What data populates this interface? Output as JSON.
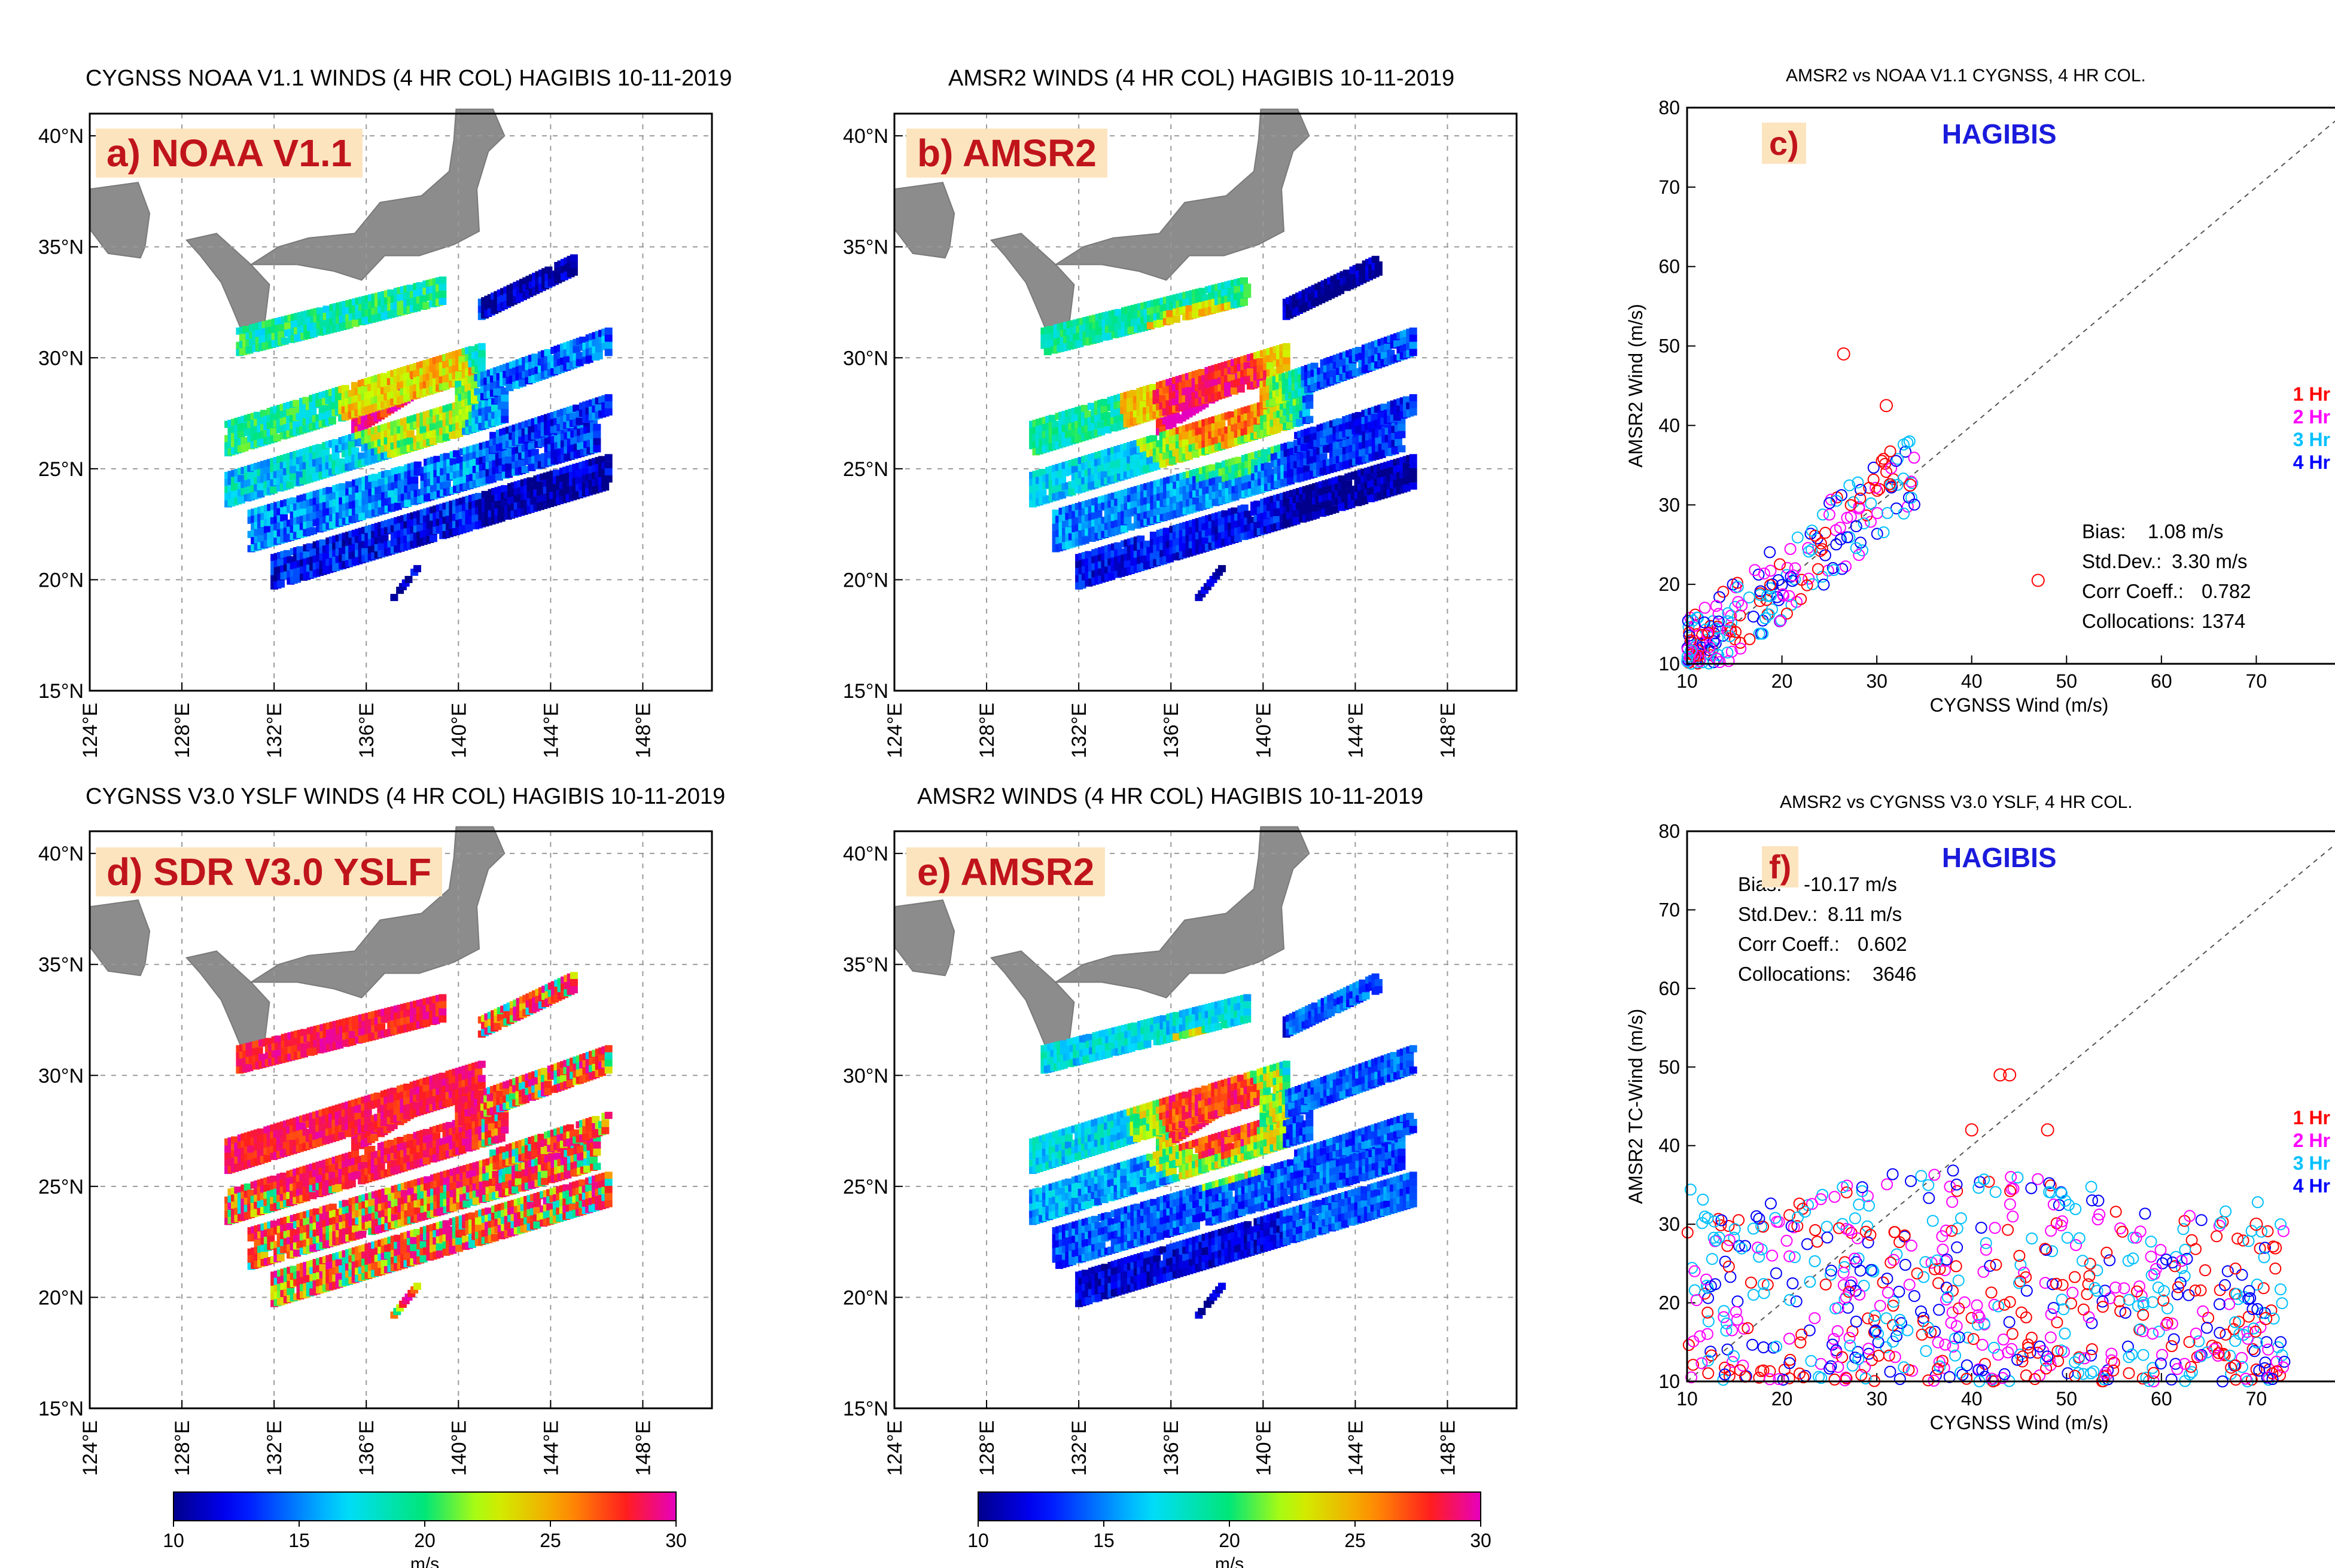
{
  "maps": [
    {
      "id": "a",
      "title": "CYGNSS NOAA V1.1 WINDS (4 HR COL)    HAGIBIS   10-11-2019",
      "label": "a) NOAA V1.1",
      "scheme": "noaa",
      "has_colorbar": false
    },
    {
      "id": "b",
      "title": "AMSR2 WINDS (4 HR COL)    HAGIBIS   10-11-2019",
      "label": "b) AMSR2",
      "scheme": "amsr",
      "has_colorbar": false
    },
    {
      "id": "d",
      "title": "CYGNSS  V3.0 YSLF WINDS (4 HR COL) HAGIBIS   10-11-2019",
      "label": "d) SDR V3.0 YSLF",
      "scheme": "yslf",
      "has_colorbar": true
    },
    {
      "id": "e",
      "title": "AMSR2 WINDS (4 HR COL)    HAGIBIS   10-11-2019",
      "label": "e) AMSR2",
      "scheme": "amsr2",
      "has_colorbar": true
    }
  ],
  "map_axes": {
    "lon_ticks": [
      "124°E",
      "128°E",
      "132°E",
      "136°E",
      "140°E",
      "144°E",
      "148°E"
    ],
    "lat_ticks": [
      "40°N",
      "35°N",
      "30°N",
      "25°N",
      "20°N",
      "15°N"
    ],
    "lon_range": [
      124,
      151
    ],
    "lat_range": [
      15,
      41
    ]
  },
  "colorbar": {
    "ticks": [
      "10",
      "15",
      "20",
      "25",
      "30"
    ],
    "unit": "m/s",
    "range": [
      10,
      30
    ]
  },
  "scatter_c": {
    "title": "AMSR2 vs NOAA V1.1 CYGNSS, 4 HR COL.",
    "label": "c)",
    "storm": "HAGIBIS",
    "xlabel": "CYGNSS Wind (m/s)",
    "ylabel": "AMSR2 Wind (m/s)",
    "ticks": [
      "10",
      "20",
      "30",
      "40",
      "50",
      "60",
      "70",
      "80"
    ],
    "legend": [
      "1 Hr",
      "2 Hr",
      "3 Hr",
      "4 Hr"
    ],
    "stats": [
      {
        "k": "Bias:",
        "v": "1.08 m/s"
      },
      {
        "k": "Std.Dev.:",
        "v": "3.30 m/s"
      },
      {
        "k": "Corr Coeff.:",
        "v": "0.782"
      },
      {
        "k": "Collocations:",
        "v": "1374"
      }
    ]
  },
  "scatter_f": {
    "title": "AMSR2 vs CYGNSS  V3.0 YSLF, 4 HR COL.",
    "label": "f)",
    "storm": "HAGIBIS",
    "xlabel": "CYGNSS Wind (m/s)",
    "ylabel": "AMSR2 TC-Wind (m/s)",
    "ticks": [
      "10",
      "20",
      "30",
      "40",
      "50",
      "60",
      "70",
      "80"
    ],
    "legend": [
      "1 Hr",
      "2 Hr",
      "3 Hr",
      "4 Hr"
    ],
    "stats": [
      {
        "k": "Bias:",
        "v": "-10.17 m/s"
      },
      {
        "k": "Std.Dev.:",
        "v": "8.11 m/s"
      },
      {
        "k": "Corr Coeff.:",
        "v": "0.602"
      },
      {
        "k": "Collocations:",
        "v": "3646"
      }
    ]
  },
  "chart_data": [
    {
      "type": "scatter",
      "title": "AMSR2 vs NOAA V1.1 CYGNSS, 4 HR COL.",
      "xlabel": "CYGNSS Wind (m/s)",
      "ylabel": "AMSR2 Wind (m/s)",
      "xlim": [
        10,
        80
      ],
      "ylim": [
        10,
        80
      ],
      "series": [
        {
          "name": "1 Hr",
          "color": "#ff0000"
        },
        {
          "name": "2 Hr",
          "color": "#ff00ff"
        },
        {
          "name": "3 Hr",
          "color": "#00c0ff"
        },
        {
          "name": "4 Hr",
          "color": "#0000ff"
        }
      ],
      "outliers": [
        [
          26.5,
          49
        ],
        [
          31,
          42.5
        ],
        [
          47,
          20.5
        ],
        [
          33.5,
          32.5
        ]
      ],
      "cluster": {
        "x_mean": 19,
        "y_mean": 20,
        "x_range": [
          10,
          34
        ],
        "y_range": [
          10,
          37
        ]
      },
      "stats": {
        "bias": 1.08,
        "std_dev": 3.3,
        "corr": 0.782,
        "n": 1374
      }
    },
    {
      "type": "scatter",
      "title": "AMSR2 vs CYGNSS  V3.0 YSLF, 4 HR COL.",
      "xlabel": "CYGNSS Wind (m/s)",
      "ylabel": "AMSR2 TC-Wind (m/s)",
      "xlim": [
        10,
        80
      ],
      "ylim": [
        10,
        80
      ],
      "series": [
        {
          "name": "1 Hr",
          "color": "#ff0000"
        },
        {
          "name": "2 Hr",
          "color": "#ff00ff"
        },
        {
          "name": "3 Hr",
          "color": "#00c0ff"
        },
        {
          "name": "4 Hr",
          "color": "#0000ff"
        }
      ],
      "outliers": [
        [
          43,
          49
        ],
        [
          44,
          49
        ],
        [
          40,
          42
        ],
        [
          48,
          42
        ],
        [
          70,
          30
        ],
        [
          71,
          18
        ],
        [
          72,
          27
        ]
      ],
      "cluster": {
        "x_mean": 33,
        "y_mean": 20,
        "x_range": [
          10,
          73
        ],
        "y_range": [
          10,
          38
        ]
      },
      "stats": {
        "bias": -10.17,
        "std_dev": 8.11,
        "corr": 0.602,
        "n": 3646
      }
    },
    {
      "type": "heatmap",
      "title": "Gridded wind-speed swaths (maps a, b, d, e)",
      "unit": "m/s",
      "range": [
        10,
        30
      ],
      "swaths": [
        {
          "lon": [
            130.5,
            139.3
          ],
          "lat": [
            31.2,
            33.5
          ],
          "v": 20
        },
        {
          "lon": [
            135.5,
            139.7
          ],
          "lat": [
            27.3,
            30.0
          ],
          "v": 24
        },
        {
          "lon": [
            130,
            141
          ],
          "lat": [
            27,
            30.5
          ],
          "v": 18
        },
        {
          "lon": [
            130,
            142
          ],
          "lat": [
            24.7,
            28.5
          ],
          "v": 16
        },
        {
          "lon": [
            131,
            146.5
          ],
          "lat": [
            21,
            29
          ],
          "v": 13
        },
        {
          "lon": [
            140,
            146.5
          ],
          "lat": [
            24,
            31.2
          ],
          "v": 14
        },
        {
          "lon": [
            141,
            145
          ],
          "lat": [
            32.5,
            34.5
          ],
          "v": 12
        }
      ]
    }
  ]
}
